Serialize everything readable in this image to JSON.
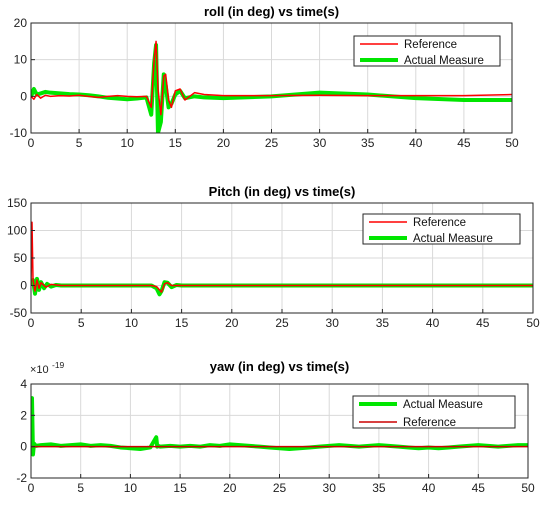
{
  "chart_data": [
    {
      "type": "line",
      "title": "roll (in deg) vs time(s)",
      "xlabel": "",
      "ylabel": "",
      "xlim": [
        0,
        50
      ],
      "ylim": [
        -10,
        20
      ],
      "xticks": [
        0,
        5,
        10,
        15,
        20,
        25,
        30,
        35,
        40,
        45,
        50
      ],
      "xtick_labels": [
        "0",
        "5",
        "10",
        "15",
        "20",
        "25",
        "30",
        "35",
        "40",
        "45",
        "50"
      ],
      "yticks": [
        -10,
        0,
        10,
        20
      ],
      "ytick_labels": [
        "-10",
        "0",
        "10",
        "20"
      ],
      "legend_position": "top-right",
      "series": [
        {
          "name": "Reference",
          "color": "#ff0000",
          "x": [
            0,
            0.3,
            0.6,
            1,
            1.5,
            2,
            3,
            4,
            5,
            6,
            7,
            8,
            9,
            10,
            11,
            12,
            12.5,
            12.8,
            13,
            13.2,
            13.5,
            13.8,
            14,
            14.3,
            14.6,
            15,
            15.5,
            16,
            17,
            18,
            20,
            25,
            30,
            35,
            40,
            45,
            50
          ],
          "y": [
            0,
            -0.8,
            0.5,
            -0.5,
            0.3,
            0,
            0.2,
            0.1,
            0.3,
            0,
            -0.3,
            0,
            0.2,
            0,
            -0.1,
            0,
            -3,
            10,
            15,
            2,
            -5,
            5.5,
            6,
            -1,
            -3,
            1.5,
            2,
            -1,
            1,
            0.5,
            0.2,
            0.2,
            0.3,
            0.2,
            0.2,
            0.2,
            0.5
          ]
        },
        {
          "name": "Actual Measure",
          "color": "#00e600",
          "x": [
            0,
            0.3,
            0.6,
            1,
            1.5,
            2,
            3,
            4,
            5,
            6,
            7,
            8,
            9,
            10,
            11,
            12,
            12.5,
            12.8,
            13,
            13.2,
            13.5,
            13.8,
            14,
            14.3,
            14.6,
            15,
            15.5,
            16,
            17,
            18,
            20,
            25,
            30,
            35,
            40,
            45,
            50
          ],
          "y": [
            0,
            2,
            0.5,
            0.8,
            1.2,
            1,
            0.8,
            0.6,
            0.5,
            0.3,
            0,
            -0.4,
            -0.6,
            -0.8,
            -0.6,
            -0.3,
            -5,
            9,
            14,
            -10,
            -7,
            6,
            3,
            -3,
            -2,
            0.5,
            1.5,
            -0.5,
            0,
            -0.3,
            -0.5,
            0,
            1,
            0.5,
            -0.5,
            -1,
            -1
          ]
        }
      ]
    },
    {
      "type": "line",
      "title": "Pitch (in deg) vs time(s)",
      "xlabel": "",
      "ylabel": "",
      "xlim": [
        0,
        50
      ],
      "ylim": [
        -50,
        150
      ],
      "xticks": [
        0,
        5,
        10,
        15,
        20,
        25,
        30,
        35,
        40,
        45,
        50
      ],
      "xtick_labels": [
        "0",
        "5",
        "10",
        "15",
        "20",
        "25",
        "30",
        "35",
        "40",
        "45",
        "50"
      ],
      "yticks": [
        -50,
        0,
        50,
        100,
        150
      ],
      "ytick_labels": [
        "-50",
        "0",
        "50",
        "100",
        "150"
      ],
      "legend_position": "top-right",
      "series": [
        {
          "name": "Reference",
          "color": "#ff0000",
          "x": [
            0,
            0.1,
            0.2,
            0.4,
            0.6,
            0.8,
            1,
            1.5,
            2,
            3,
            5,
            10,
            12,
            12.5,
            12.8,
            13,
            13.3,
            13.6,
            14,
            15,
            20,
            30,
            40,
            50
          ],
          "y": [
            0,
            115,
            10,
            -10,
            10,
            -5,
            5,
            -3,
            2,
            0,
            0,
            0,
            0,
            -2,
            -8,
            -12,
            3,
            5,
            0,
            0,
            0,
            0,
            0,
            0
          ]
        },
        {
          "name": "Actual Measure",
          "color": "#00e600",
          "x": [
            0,
            0.2,
            0.4,
            0.6,
            0.8,
            1,
            1.3,
            1.6,
            2,
            2.5,
            3,
            5,
            10,
            12,
            12.5,
            12.8,
            13,
            13.3,
            13.6,
            14,
            14.5,
            15,
            20,
            30,
            40,
            50
          ],
          "y": [
            0,
            10,
            -15,
            12,
            -8,
            6,
            -5,
            3,
            -2,
            1,
            0,
            0,
            0,
            0,
            -5,
            -16,
            -10,
            6,
            5,
            -3,
            1,
            0,
            0,
            0,
            0,
            0
          ]
        }
      ]
    },
    {
      "type": "line",
      "title": "yaw (in deg) vs time(s)",
      "xlabel": "",
      "ylabel": "",
      "xlim": [
        0,
        50
      ],
      "ylim": [
        -2,
        4
      ],
      "y_scale_exponent": "×10^-19",
      "exponent_base": "×10",
      "exponent_power": "-19",
      "xticks": [
        0,
        5,
        10,
        15,
        20,
        25,
        30,
        35,
        40,
        45,
        50
      ],
      "xtick_labels": [
        "0",
        "5",
        "10",
        "15",
        "20",
        "25",
        "30",
        "35",
        "40",
        "45",
        "50"
      ],
      "yticks": [
        -2,
        0,
        2,
        4
      ],
      "ytick_labels": [
        "-2",
        "0",
        "2",
        "4"
      ],
      "legend_position": "top-right",
      "series": [
        {
          "name": "Actual Measure",
          "color": "#00e600",
          "x": [
            0,
            0.1,
            0.2,
            0.3,
            0.5,
            1,
            2,
            3,
            4,
            5,
            6,
            7,
            8,
            9,
            10,
            11,
            12,
            12.6,
            12.7,
            12.8,
            13,
            14,
            15,
            16,
            17,
            18,
            19,
            20,
            21,
            22,
            23,
            24,
            25,
            26,
            27,
            28,
            29,
            30,
            31,
            32,
            33,
            34,
            35,
            36,
            37,
            38,
            39,
            40,
            41,
            42,
            43,
            44,
            45,
            46,
            47,
            48,
            49,
            50
          ],
          "y": [
            0,
            3.1,
            -0.5,
            0.2,
            0.05,
            0.1,
            0.15,
            0.05,
            0.1,
            0.15,
            0.05,
            0.1,
            0.05,
            -0.05,
            -0.1,
            -0.15,
            -0.05,
            0.6,
            0,
            0.05,
            0,
            0.05,
            0,
            0.05,
            0,
            0.1,
            0.05,
            0.15,
            0.1,
            0.05,
            0,
            -0.05,
            -0.1,
            -0.15,
            -0.1,
            -0.05,
            0,
            0.05,
            0.1,
            0.05,
            0,
            0.05,
            0.1,
            0.05,
            0,
            -0.05,
            -0.1,
            -0.05,
            -0.1,
            -0.05,
            0,
            0.05,
            0.1,
            0.05,
            0,
            0.05,
            0.1,
            0.1
          ]
        },
        {
          "name": "Reference",
          "color": "#cc0000",
          "x": [
            0,
            5,
            10,
            15,
            20,
            25,
            30,
            35,
            40,
            45,
            50
          ],
          "y": [
            0,
            0,
            0,
            0,
            0,
            0,
            0,
            0,
            0,
            0,
            0
          ]
        }
      ]
    }
  ]
}
